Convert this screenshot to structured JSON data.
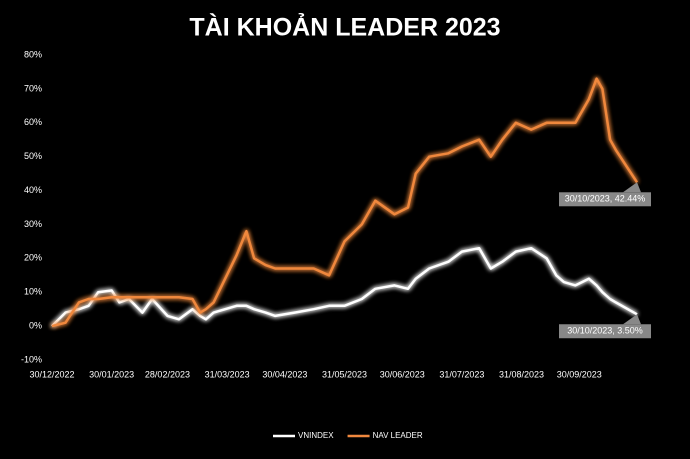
{
  "chart_data": {
    "type": "line",
    "title": "TÀI KHOẢN LEADER 2023",
    "x": [
      "30/12/2022",
      "06/01/2023",
      "13/01/2023",
      "18/01/2023",
      "23/01/2023",
      "30/01/2023",
      "03/02/2023",
      "08/02/2023",
      "15/02/2023",
      "20/02/2023",
      "28/02/2023",
      "06/03/2023",
      "13/03/2023",
      "17/03/2023",
      "20/03/2023",
      "24/03/2023",
      "05/04/2023",
      "10/04/2023",
      "14/04/2023",
      "20/04/2023",
      "25/04/2023",
      "05/05/2023",
      "15/05/2023",
      "23/05/2023",
      "31/05/2023",
      "09/06/2023",
      "16/06/2023",
      "26/06/2023",
      "03/07/2023",
      "07/07/2023",
      "14/07/2023",
      "24/07/2023",
      "31/07/2023",
      "09/08/2023",
      "15/08/2023",
      "21/08/2023",
      "28/08/2023",
      "05/09/2023",
      "13/09/2023",
      "18/09/2023",
      "22/09/2023",
      "28/09/2023",
      "05/10/2023",
      "09/10/2023",
      "12/10/2023",
      "16/10/2023",
      "19/10/2023",
      "30/10/2023"
    ],
    "series": [
      {
        "name": "VNINDEX",
        "color": "#ffffff",
        "values": [
          0,
          4,
          5,
          6,
          10,
          10.5,
          7,
          8,
          4,
          8,
          3,
          2,
          5,
          3,
          2,
          4,
          6,
          6,
          5,
          4,
          3,
          4,
          5,
          6,
          6,
          8,
          11,
          12,
          11,
          14,
          17,
          19,
          22,
          23,
          17,
          19,
          22,
          23,
          20,
          15,
          13,
          12,
          14,
          12,
          10,
          8,
          7,
          3.5
        ],
        "value_labels": [
          null,
          null,
          null,
          null,
          null,
          null,
          null,
          null,
          null,
          null,
          null,
          null,
          null,
          null,
          null,
          null,
          null,
          null,
          null,
          null,
          null,
          null,
          null,
          null,
          null,
          null,
          null,
          null,
          null,
          null,
          null,
          null,
          null,
          null,
          null,
          null,
          null,
          null,
          null,
          null,
          null,
          null,
          null,
          null,
          null,
          null,
          null,
          "30/10/2023, 3.50%"
        ]
      },
      {
        "name": "NAV LEADER",
        "color": "#f0883e",
        "values": [
          0,
          1,
          7,
          8,
          8,
          8.5,
          8.5,
          8.5,
          8.5,
          8.5,
          8.5,
          8.5,
          8,
          4,
          5,
          7,
          21,
          28,
          20,
          18,
          17,
          17,
          17,
          15,
          25,
          30,
          37,
          33,
          35,
          45,
          50,
          51,
          53,
          55,
          50,
          55,
          60,
          58,
          60,
          60,
          60,
          60,
          67,
          73,
          70,
          55,
          52,
          42.44
        ],
        "value_labels": [
          null,
          null,
          null,
          null,
          null,
          null,
          null,
          null,
          null,
          null,
          null,
          null,
          null,
          null,
          null,
          null,
          null,
          null,
          null,
          null,
          null,
          null,
          null,
          null,
          null,
          null,
          null,
          null,
          null,
          null,
          null,
          null,
          null,
          null,
          null,
          null,
          null,
          null,
          null,
          null,
          null,
          null,
          null,
          null,
          null,
          null,
          null,
          "30/10/2023, 42.44%"
        ]
      }
    ],
    "xlim": [
      "30/12/2022",
      "30/10/2023"
    ],
    "xticks": [
      "30/12/2022",
      "30/01/2023",
      "28/02/2023",
      "31/03/2023",
      "30/04/2023",
      "31/05/2023",
      "30/06/2023",
      "31/07/2023",
      "31/08/2023",
      "30/09/2023"
    ],
    "ylim": [
      -10,
      80
    ],
    "yticks": [
      {
        "value": -10,
        "label": "-10%"
      },
      {
        "value": 0,
        "label": "0%"
      },
      {
        "value": 10,
        "label": "10%"
      },
      {
        "value": 20,
        "label": "20%"
      },
      {
        "value": 30,
        "label": "30%"
      },
      {
        "value": 40,
        "label": "40%"
      },
      {
        "value": 50,
        "label": "50%"
      },
      {
        "value": 60,
        "label": "60%"
      },
      {
        "value": 70,
        "label": "70%"
      },
      {
        "value": 80,
        "label": "80%"
      }
    ],
    "grid": false,
    "legend": "bottom"
  }
}
